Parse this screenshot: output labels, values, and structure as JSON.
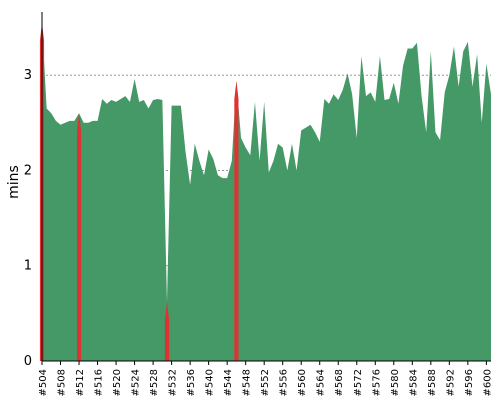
{
  "chart_data": {
    "type": "area",
    "title": "",
    "xlabel": "",
    "ylabel": "mins",
    "ylim": [
      0,
      3.6
    ],
    "yticks": [
      0,
      1,
      2,
      3
    ],
    "grid": "horizontal dashed at y-ticks",
    "x_tick_labels": [
      "#504",
      "#508",
      "#512",
      "#516",
      "#520",
      "#524",
      "#528",
      "#532",
      "#536",
      "#540",
      "#544",
      "#548",
      "#552",
      "#556",
      "#560",
      "#564",
      "#568",
      "#572",
      "#576",
      "#580",
      "#584",
      "#588",
      "#592",
      "#596",
      "#600"
    ],
    "x_start": 504,
    "x_end": 601,
    "series": [
      {
        "name": "",
        "color": "#449966",
        "x": [
          504,
          505,
          506,
          507,
          508,
          509,
          510,
          511,
          512,
          513,
          514,
          515,
          516,
          517,
          518,
          519,
          520,
          521,
          522,
          523,
          524,
          525,
          526,
          527,
          528,
          529,
          530,
          531,
          532,
          533,
          534,
          535,
          536,
          537,
          538,
          539,
          540,
          541,
          542,
          543,
          544,
          545,
          546,
          547,
          548,
          549,
          550,
          551,
          552,
          553,
          554,
          555,
          556,
          557,
          558,
          559,
          560,
          561,
          562,
          563,
          564,
          565,
          566,
          567,
          568,
          569,
          570,
          571,
          572,
          573,
          574,
          575,
          576,
          577,
          578,
          579,
          580,
          581,
          582,
          583,
          584,
          585,
          586,
          587,
          588,
          589,
          590,
          591,
          592,
          593,
          594,
          595,
          596,
          597,
          598,
          599,
          600,
          601
        ],
        "y": [
          3.55,
          2.65,
          2.6,
          2.52,
          2.48,
          2.5,
          2.52,
          2.52,
          2.6,
          2.5,
          2.5,
          2.52,
          2.52,
          2.75,
          2.7,
          2.74,
          2.72,
          2.75,
          2.78,
          2.72,
          2.96,
          2.72,
          2.74,
          2.65,
          2.74,
          2.75,
          2.74,
          0.62,
          2.68,
          2.68,
          2.68,
          2.2,
          1.85,
          2.28,
          2.1,
          1.95,
          2.22,
          2.12,
          1.95,
          1.92,
          1.92,
          2.1,
          2.94,
          2.34,
          2.24,
          2.16,
          2.72,
          2.1,
          2.72,
          1.98,
          2.1,
          2.28,
          2.24,
          2.0,
          2.28,
          2.0,
          2.42,
          2.45,
          2.48,
          2.4,
          2.3,
          2.75,
          2.7,
          2.8,
          2.74,
          2.85,
          3.02,
          2.8,
          2.34,
          3.2,
          2.78,
          2.82,
          2.72,
          3.2,
          2.74,
          2.75,
          2.92,
          2.7,
          3.1,
          3.28,
          3.28,
          3.34,
          2.78,
          2.4,
          3.25,
          2.4,
          2.32,
          2.82,
          3.0,
          3.3,
          2.88,
          3.25,
          3.35,
          2.88,
          3.22,
          2.5,
          3.12,
          2.8
        ]
      }
    ],
    "highlights": {
      "color": "#dd3333",
      "x": [
        504,
        512,
        531,
        546
      ]
    }
  }
}
